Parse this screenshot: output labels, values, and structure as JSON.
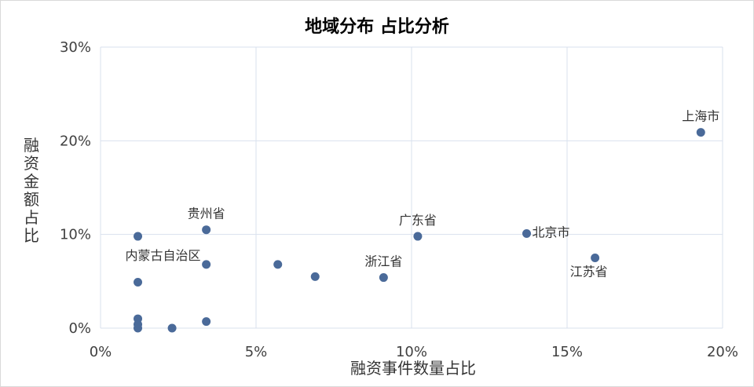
{
  "chart_data": {
    "type": "scatter",
    "title": "地域分布 占比分析",
    "xlabel": "融资事件数量占比",
    "ylabel": "融资金额占比",
    "xlim": [
      0,
      20
    ],
    "ylim": [
      0,
      30
    ],
    "x_ticks": [
      0,
      5,
      10,
      15,
      20
    ],
    "y_ticks": [
      0,
      10,
      20,
      30
    ],
    "x_tick_labels": [
      "0%",
      "5%",
      "10%",
      "15%",
      "20%"
    ],
    "y_tick_labels": [
      "0%",
      "10%",
      "20%",
      "30%"
    ],
    "grid": true,
    "marker_color": "#4a6a99",
    "points": [
      {
        "x": 19.3,
        "y": 20.9,
        "label": "上海市",
        "label_pos": "above"
      },
      {
        "x": 13.7,
        "y": 10.1,
        "label": "北京市",
        "label_pos": "right"
      },
      {
        "x": 10.2,
        "y": 9.8,
        "label": "广东省",
        "label_pos": "above"
      },
      {
        "x": 9.1,
        "y": 5.4,
        "label": "浙江省",
        "label_pos": "above"
      },
      {
        "x": 15.9,
        "y": 7.5,
        "label": "江苏省",
        "label_pos": "below-left"
      },
      {
        "x": 3.4,
        "y": 10.5,
        "label": "贵州省",
        "label_pos": "above"
      },
      {
        "x": 1.2,
        "y": 9.8,
        "label": "内蒙古自治区",
        "label_pos": "below-right"
      },
      {
        "x": 3.4,
        "y": 6.8,
        "label": ""
      },
      {
        "x": 5.7,
        "y": 6.8,
        "label": ""
      },
      {
        "x": 6.9,
        "y": 5.5,
        "label": ""
      },
      {
        "x": 1.2,
        "y": 4.9,
        "label": ""
      },
      {
        "x": 1.2,
        "y": 1.0,
        "label": ""
      },
      {
        "x": 1.2,
        "y": 0.4,
        "label": ""
      },
      {
        "x": 1.2,
        "y": 0.0,
        "label": ""
      },
      {
        "x": 2.3,
        "y": 0.0,
        "label": ""
      },
      {
        "x": 3.4,
        "y": 0.7,
        "label": ""
      }
    ]
  }
}
